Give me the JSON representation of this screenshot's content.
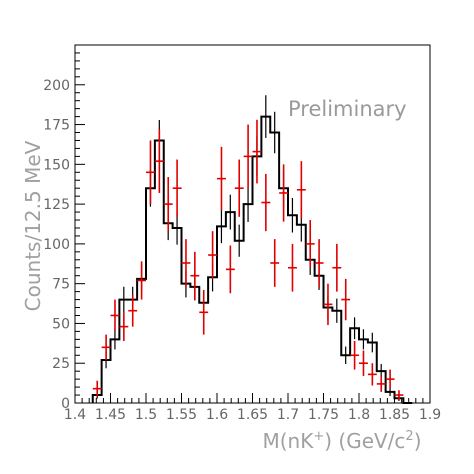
{
  "chart_data": {
    "type": "line",
    "title": "",
    "xlabel": "M(nK+) (GeV/c2)",
    "ylabel": "Counts/12.5 MeV",
    "annotation": "Preliminary",
    "xlim": [
      1.4,
      1.9
    ],
    "ylim": [
      0,
      225
    ],
    "x_ticks": [
      "1.4",
      "1.45",
      "1.5",
      "1.55",
      "1.6",
      "1.65",
      "1.7",
      "1.75",
      "1.8",
      "1.85",
      "1.9"
    ],
    "y_ticks": [
      "0",
      "25",
      "50",
      "75",
      "100",
      "125",
      "150",
      "175",
      "200"
    ],
    "colors": {
      "histogram": "#000000",
      "data_points": "#e00000",
      "axes": "#000000"
    },
    "series": [
      {
        "type": "step-histogram-with-errors",
        "bin_width": 0.0125,
        "bin_edges": [
          1.425,
          1.4375,
          1.45,
          1.4625,
          1.475,
          1.4875,
          1.5,
          1.5125,
          1.525,
          1.5375,
          1.55,
          1.5625,
          1.575,
          1.5875,
          1.6,
          1.6125,
          1.625,
          1.6375,
          1.65,
          1.6625,
          1.675,
          1.6875,
          1.7,
          1.7125,
          1.725,
          1.7375,
          1.75,
          1.7625,
          1.775,
          1.7875,
          1.8,
          1.8125,
          1.825,
          1.8375,
          1.85,
          1.8625,
          1.875
        ],
        "values": [
          5,
          27,
          40,
          65,
          65,
          78,
          135,
          165,
          113,
          110,
          75,
          73,
          63,
          79,
          111,
          120,
          102,
          125,
          155,
          180,
          170,
          135,
          118,
          112,
          90,
          80,
          60,
          58,
          30,
          47,
          40,
          38,
          20,
          7,
          3,
          0
        ]
      },
      {
        "type": "points-with-errors",
        "x": [
          1.4313,
          1.4438,
          1.4563,
          1.4688,
          1.4813,
          1.4938,
          1.5063,
          1.5188,
          1.5313,
          1.5438,
          1.5563,
          1.5688,
          1.5813,
          1.5938,
          1.6063,
          1.6188,
          1.6313,
          1.6438,
          1.6563,
          1.6688,
          1.6813,
          1.6938,
          1.7063,
          1.7188,
          1.7313,
          1.7438,
          1.7563,
          1.7688,
          1.7813,
          1.7938,
          1.8063,
          1.8188,
          1.8313,
          1.8438,
          1.8563
        ],
        "y": [
          9,
          35,
          55,
          48,
          58,
          77,
          145,
          152,
          125,
          135,
          88,
          80,
          57,
          93,
          141,
          84,
          135,
          155,
          158,
          126,
          88,
          132,
          85,
          134,
          100,
          88,
          62,
          85,
          65,
          30,
          25,
          18,
          12,
          15,
          5
        ],
        "x_err": 0.00625,
        "y_err": [
          5,
          8,
          10,
          9,
          10,
          12,
          20,
          20,
          17,
          18,
          15,
          15,
          14,
          15,
          20,
          15,
          18,
          20,
          20,
          18,
          15,
          18,
          15,
          18,
          15,
          15,
          13,
          15,
          13,
          9,
          8,
          7,
          5,
          6,
          3
        ]
      }
    ]
  }
}
